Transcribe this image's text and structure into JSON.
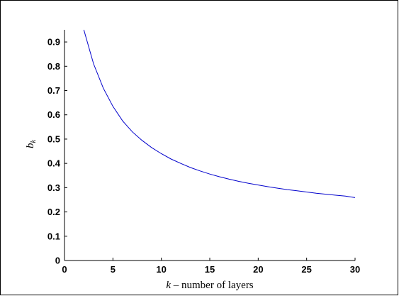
{
  "chart_data": {
    "type": "line",
    "title": "",
    "xlabel_var": "k",
    "xlabel_text": " – number of layers",
    "ylabel_var": "b",
    "ylabel_sub": "k",
    "xlim": [
      0,
      30
    ],
    "ylim": [
      0,
      0.95
    ],
    "xticks": [
      0,
      5,
      10,
      15,
      20,
      25,
      30
    ],
    "yticks": [
      0,
      0.1,
      0.2,
      0.3,
      0.4,
      0.5,
      0.6,
      0.7,
      0.8,
      0.9
    ],
    "ytick_labels": [
      "0",
      "0.1",
      "0.2",
      "0.3",
      "0.4",
      "0.5",
      "0.6",
      "0.7",
      "0.8",
      "0.9"
    ],
    "grid": false,
    "series": [
      {
        "color": "#0000cc",
        "x": [
          2,
          3,
          4,
          5,
          6,
          7,
          8,
          9,
          10,
          11,
          12,
          13,
          14,
          15,
          16,
          17,
          18,
          19,
          20,
          21,
          22,
          23,
          24,
          25,
          26,
          27,
          28,
          29,
          30
        ],
        "y": [
          0.95,
          0.81,
          0.71,
          0.635,
          0.575,
          0.53,
          0.495,
          0.465,
          0.44,
          0.418,
          0.4,
          0.383,
          0.369,
          0.356,
          0.345,
          0.335,
          0.326,
          0.318,
          0.311,
          0.304,
          0.298,
          0.292,
          0.287,
          0.282,
          0.277,
          0.273,
          0.269,
          0.265,
          0.259
        ]
      }
    ]
  }
}
